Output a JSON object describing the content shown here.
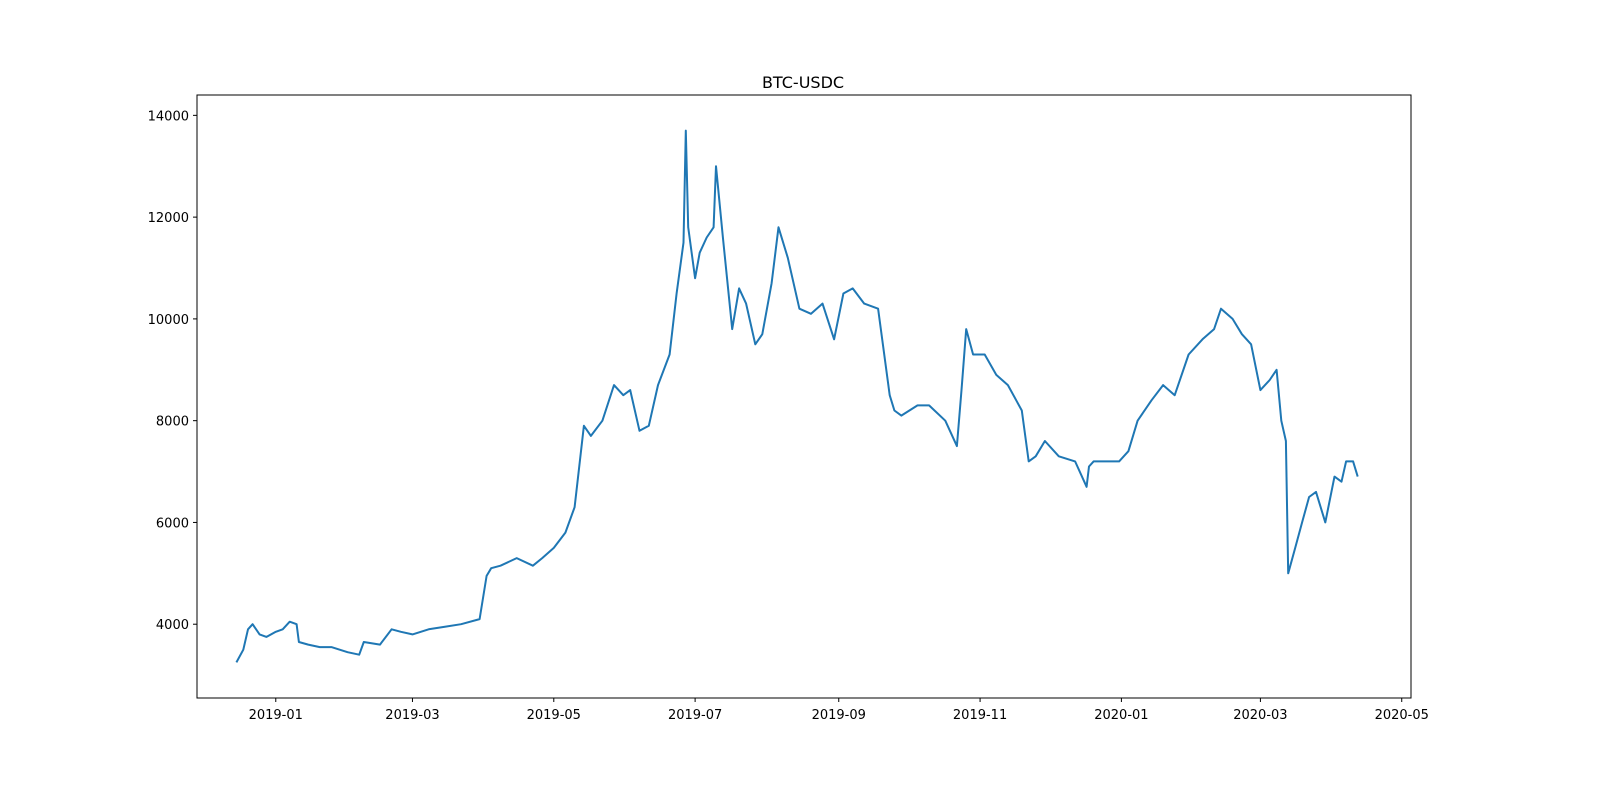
{
  "chart_data": {
    "type": "line",
    "title": "BTC-USDC",
    "xlabel": "",
    "ylabel": "",
    "grid": false,
    "line_color": "#1f77b4",
    "xlim": [
      "2018-11-28",
      "2020-05-05"
    ],
    "ylim": [
      2550,
      14400
    ],
    "x_ticks": [
      "2019-01",
      "2019-03",
      "2019-05",
      "2019-07",
      "2019-09",
      "2019-11",
      "2020-01",
      "2020-03",
      "2020-05"
    ],
    "y_ticks": [
      4000,
      6000,
      8000,
      10000,
      12000,
      14000
    ],
    "series": [
      {
        "x": [
          "2018-12-15",
          "2018-12-18",
          "2018-12-20",
          "2018-12-22",
          "2018-12-25",
          "2018-12-28",
          "2019-01-01",
          "2019-01-04",
          "2019-01-07",
          "2019-01-10",
          "2019-01-11",
          "2019-01-15",
          "2019-01-20",
          "2019-01-25",
          "2019-02-01",
          "2019-02-06",
          "2019-02-08",
          "2019-02-15",
          "2019-02-20",
          "2019-02-24",
          "2019-03-01",
          "2019-03-08",
          "2019-03-15",
          "2019-03-22",
          "2019-03-30",
          "2019-04-02",
          "2019-04-04",
          "2019-04-08",
          "2019-04-15",
          "2019-04-22",
          "2019-04-26",
          "2019-05-01",
          "2019-05-06",
          "2019-05-10",
          "2019-05-14",
          "2019-05-17",
          "2019-05-22",
          "2019-05-27",
          "2019-05-31",
          "2019-06-03",
          "2019-06-07",
          "2019-06-11",
          "2019-06-15",
          "2019-06-20",
          "2019-06-23",
          "2019-06-26",
          "2019-06-27",
          "2019-06-28",
          "2019-07-01",
          "2019-07-03",
          "2019-07-06",
          "2019-07-09",
          "2019-07-10",
          "2019-07-13",
          "2019-07-17",
          "2019-07-20",
          "2019-07-23",
          "2019-07-27",
          "2019-07-30",
          "2019-08-03",
          "2019-08-06",
          "2019-08-10",
          "2019-08-15",
          "2019-08-20",
          "2019-08-25",
          "2019-08-30",
          "2019-09-03",
          "2019-09-07",
          "2019-09-12",
          "2019-09-18",
          "2019-09-23",
          "2019-09-25",
          "2019-09-28",
          "2019-10-05",
          "2019-10-10",
          "2019-10-17",
          "2019-10-22",
          "2019-10-24",
          "2019-10-26",
          "2019-10-29",
          "2019-11-03",
          "2019-11-08",
          "2019-11-13",
          "2019-11-19",
          "2019-11-22",
          "2019-11-25",
          "2019-11-29",
          "2019-12-05",
          "2019-12-12",
          "2019-12-17",
          "2019-12-18",
          "2019-12-20",
          "2019-12-25",
          "2019-12-31",
          "2020-01-04",
          "2020-01-08",
          "2020-01-14",
          "2020-01-19",
          "2020-01-24",
          "2020-01-30",
          "2020-02-05",
          "2020-02-10",
          "2020-02-13",
          "2020-02-18",
          "2020-02-22",
          "2020-02-26",
          "2020-03-01",
          "2020-03-05",
          "2020-03-08",
          "2020-03-10",
          "2020-03-12",
          "2020-03-13",
          "2020-03-16",
          "2020-03-19",
          "2020-03-22",
          "2020-03-25",
          "2020-03-29",
          "2020-04-02",
          "2020-04-05",
          "2020-04-07",
          "2020-04-10",
          "2020-04-12"
        ],
        "y": [
          3250,
          3500,
          3900,
          4000,
          3800,
          3750,
          3850,
          3900,
          4050,
          4000,
          3650,
          3600,
          3550,
          3550,
          3450,
          3400,
          3650,
          3600,
          3900,
          3850,
          3800,
          3900,
          3950,
          4000,
          4100,
          4950,
          5100,
          5150,
          5300,
          5150,
          5300,
          5500,
          5800,
          6300,
          7900,
          7700,
          8000,
          8700,
          8500,
          8600,
          7800,
          7900,
          8700,
          9300,
          10500,
          11500,
          13700,
          11800,
          10800,
          11300,
          11600,
          11800,
          13000,
          11600,
          9800,
          10600,
          10300,
          9500,
          9700,
          10700,
          11800,
          11200,
          10200,
          10100,
          10300,
          9600,
          10500,
          10600,
          10300,
          10200,
          8500,
          8200,
          8100,
          8300,
          8300,
          8000,
          7500,
          8600,
          9800,
          9300,
          9300,
          8900,
          8700,
          8200,
          7200,
          7300,
          7600,
          7300,
          7200,
          6700,
          7100,
          7200,
          7200,
          7200,
          7400,
          8000,
          8400,
          8700,
          8500,
          9300,
          9600,
          9800,
          10200,
          10000,
          9700,
          9500,
          8600,
          8800,
          9000,
          8000,
          7600,
          5000,
          5500,
          6000,
          6500,
          6600,
          6000,
          6900,
          6800,
          7200,
          7200,
          6900
        ]
      }
    ]
  }
}
